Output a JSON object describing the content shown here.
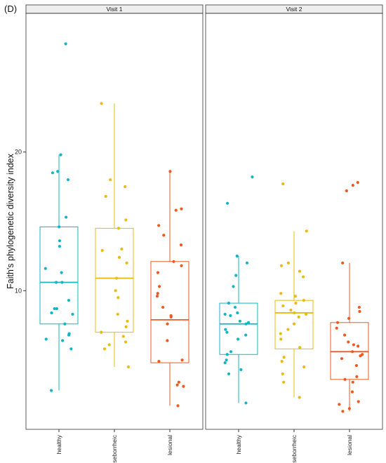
{
  "panel_tag": "(D)",
  "chart_data": {
    "type": "box",
    "ylabel": "Faith's phylogenetic diversity index",
    "xlabel": "",
    "ylim": [
      0.0,
      30.0
    ],
    "yticks": [
      10,
      20
    ],
    "categories": [
      "healthy",
      "seborrheic",
      "lesional"
    ],
    "colors": {
      "healthy": "#13B5C4",
      "seborrheic": "#E8BA12",
      "lesional": "#EE5A1E"
    },
    "facets": [
      {
        "label": "Visit 1",
        "groups": [
          {
            "category": "healthy",
            "box": {
              "whisker_low": 2.8,
              "q1": 7.6,
              "median": 10.6,
              "q3": 14.6,
              "whisker_high": 19.8
            },
            "points": [
              27.8,
              19.8,
              18.6,
              18.5,
              18.0,
              15.3,
              14.6,
              13.6,
              13.2,
              11.6,
              11.3,
              10.6,
              10.6,
              9.3,
              8.7,
              8.7,
              8.4,
              8.3,
              7.6,
              6.9,
              6.8,
              6.5,
              6.4,
              5.8,
              2.8
            ]
          },
          {
            "category": "seborrheic",
            "box": {
              "whisker_low": 4.5,
              "q1": 7.0,
              "median": 10.9,
              "q3": 14.5,
              "whisker_high": 23.5
            },
            "points": [
              23.5,
              18.0,
              17.5,
              16.8,
              15.1,
              14.5,
              13.0,
              12.9,
              12.4,
              12.0,
              10.9,
              10.0,
              9.5,
              8.3,
              7.8,
              7.4,
              7.0,
              6.7,
              6.3,
              6.1,
              5.8,
              4.5
            ]
          },
          {
            "category": "lesional",
            "box": {
              "whisker_low": 1.7,
              "q1": 4.8,
              "median": 7.9,
              "q3": 12.1,
              "whisker_high": 18.6
            },
            "points": [
              18.6,
              15.9,
              15.8,
              14.7,
              14.0,
              13.3,
              12.1,
              11.8,
              11.3,
              10.3,
              9.8,
              9.6,
              8.8,
              8.2,
              8.1,
              7.6,
              6.4,
              5.0,
              4.9,
              3.4,
              3.2,
              3.1,
              1.7
            ]
          }
        ]
      },
      {
        "label": "Visit 2",
        "groups": [
          {
            "category": "healthy",
            "box": {
              "whisker_low": 1.9,
              "q1": 5.4,
              "median": 7.6,
              "q3": 9.1,
              "whisker_high": 12.5
            },
            "points": [
              18.2,
              16.3,
              12.5,
              12.0,
              11.1,
              10.3,
              9.1,
              8.8,
              8.4,
              8.3,
              8.2,
              7.8,
              7.7,
              7.6,
              7.2,
              7.0,
              6.8,
              6.5,
              5.6,
              5.4,
              5.0,
              4.8,
              4.3,
              4.0,
              1.9
            ]
          },
          {
            "category": "seborrheic",
            "box": {
              "whisker_low": 2.3,
              "q1": 5.8,
              "median": 8.4,
              "q3": 9.3,
              "whisker_high": 14.3
            },
            "points": [
              17.7,
              14.3,
              12.0,
              11.8,
              11.4,
              11.0,
              9.8,
              9.6,
              9.3,
              9.1,
              8.9,
              8.6,
              8.4,
              8.3,
              8.1,
              7.6,
              7.2,
              6.9,
              6.5,
              5.9,
              5.2,
              4.9,
              4.5,
              4.0,
              3.4,
              2.3
            ]
          },
          {
            "category": "lesional",
            "box": {
              "whisker_low": 1.3,
              "q1": 3.6,
              "median": 5.6,
              "q3": 7.7,
              "whisker_high": 12.0
            },
            "points": [
              17.8,
              17.6,
              17.2,
              12.0,
              8.8,
              8.5,
              8.0,
              7.7,
              7.3,
              6.8,
              6.3,
              6.1,
              6.0,
              5.6,
              5.4,
              5.3,
              5.1,
              4.6,
              3.8,
              3.6,
              3.4,
              2.7,
              2.0,
              1.8,
              1.5,
              1.3
            ]
          }
        ]
      }
    ]
  }
}
